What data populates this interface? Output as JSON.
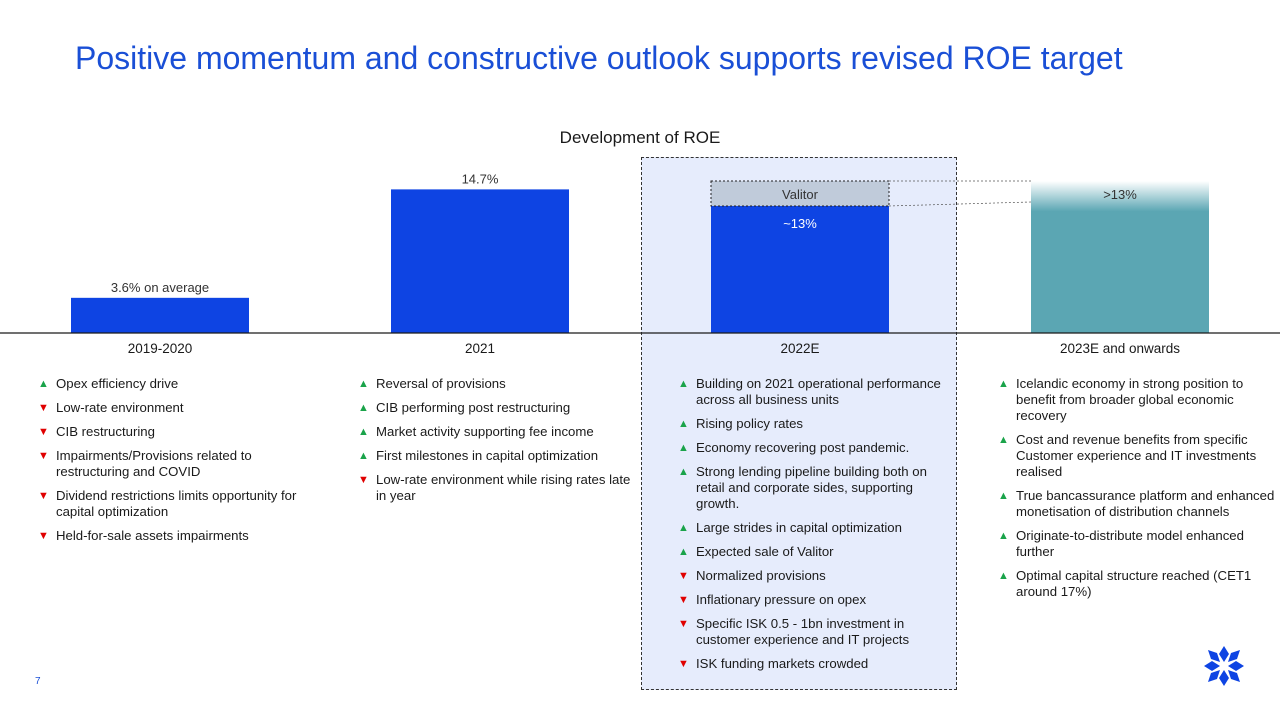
{
  "title": "Positive momentum and constructive outlook supports revised ROE target",
  "page_number": "7",
  "colors": {
    "accent": "#1a4fd6",
    "bar": "#0e44e3",
    "teal": "#5ba6b3",
    "valitor": "#c0cbda",
    "up": "#1aa34a",
    "down": "#e00000"
  },
  "chart_data": {
    "type": "bar",
    "title": "Development of ROE",
    "categories": [
      "2019-2020",
      "2021",
      "2022E",
      "2023E and onwards"
    ],
    "values": [
      3.6,
      14.7,
      13,
      13
    ],
    "stacked_extra": {
      "category": "2022E",
      "label": "Valitor"
    },
    "data_labels": [
      "3.6% on average",
      "14.7%",
      "~13%",
      ">13%"
    ],
    "unit": "%",
    "grid": false,
    "legend": "none"
  },
  "columns": [
    {
      "label": "2019-2020",
      "bullets": [
        {
          "dir": "up",
          "text": "Opex efficiency drive"
        },
        {
          "dir": "down",
          "text": "Low-rate environment"
        },
        {
          "dir": "down",
          "text": "CIB restructuring"
        },
        {
          "dir": "down",
          "text": "Impairments/Provisions related to restructuring and COVID"
        },
        {
          "dir": "down",
          "text": "Dividend restrictions limits opportunity for capital optimization"
        },
        {
          "dir": "down",
          "text": "Held-for-sale assets impairments"
        }
      ]
    },
    {
      "label": "2021",
      "bullets": [
        {
          "dir": "up",
          "text": "Reversal of provisions"
        },
        {
          "dir": "up",
          "text": "CIB performing post restructuring"
        },
        {
          "dir": "up",
          "text": "Market activity supporting fee income"
        },
        {
          "dir": "up",
          "text": "First milestones in capital optimization"
        },
        {
          "dir": "down",
          "text": "Low-rate environment while rising rates late in year"
        }
      ]
    },
    {
      "label": "2022E",
      "bullets": [
        {
          "dir": "up",
          "text": "Building on 2021 operational performance across all business units"
        },
        {
          "dir": "up",
          "text": "Rising policy rates"
        },
        {
          "dir": "up",
          "text": "Economy recovering post pandemic."
        },
        {
          "dir": "up",
          "text": "Strong lending pipeline building both on retail and corporate sides, supporting growth."
        },
        {
          "dir": "up",
          "text": "Large strides in capital optimization"
        },
        {
          "dir": "up",
          "text": "Expected sale of Valitor"
        },
        {
          "dir": "down",
          "text": "Normalized provisions"
        },
        {
          "dir": "down",
          "text": "Inflationary pressure on opex"
        },
        {
          "dir": "down",
          "text": "Specific ISK 0.5 - 1bn investment in customer experience and IT projects"
        },
        {
          "dir": "down",
          "text": "ISK funding markets crowded"
        }
      ]
    },
    {
      "label": "2023E and onwards",
      "bullets": [
        {
          "dir": "up",
          "text": "Icelandic economy in strong position to benefit from broader global economic recovery"
        },
        {
          "dir": "up",
          "text": "Cost and revenue benefits from specific Customer experience and IT investments realised"
        },
        {
          "dir": "up",
          "text": "True bancassurance platform and enhanced monetisation of distribution channels"
        },
        {
          "dir": "up",
          "text": "Originate-to-distribute model enhanced further"
        },
        {
          "dir": "up",
          "text": "Optimal capital structure reached (CET1 around 17%)"
        }
      ]
    }
  ]
}
